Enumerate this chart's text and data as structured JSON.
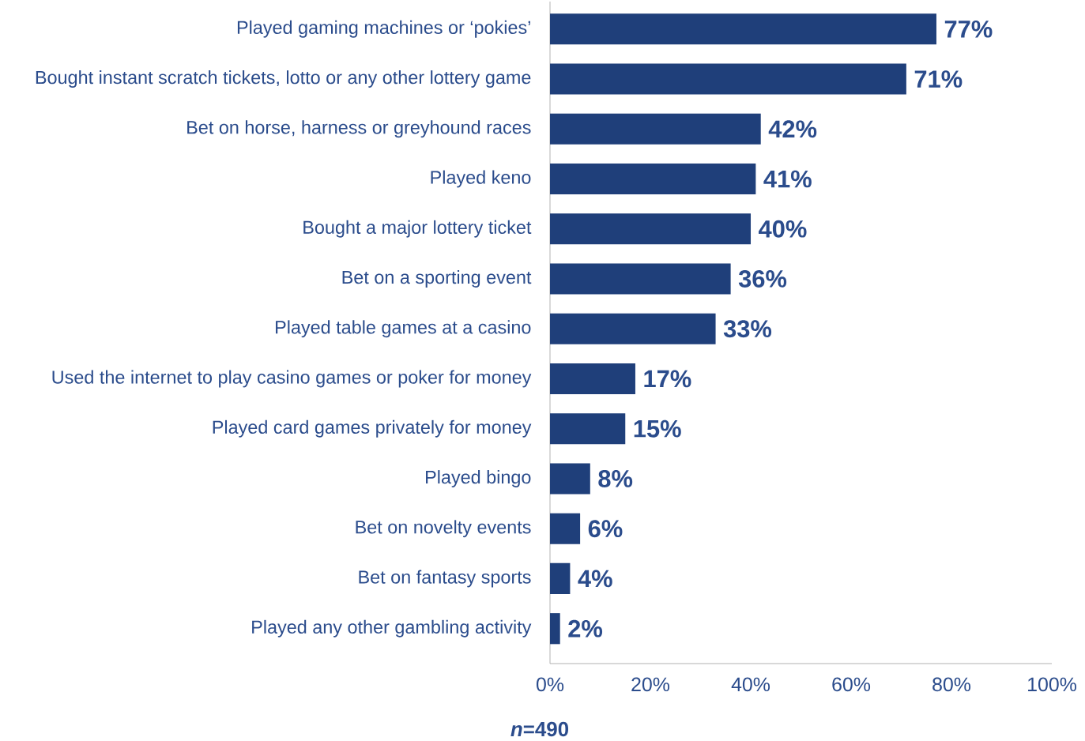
{
  "chart_data": {
    "type": "bar",
    "orientation": "horizontal",
    "color": "#1f3f7a",
    "categories": [
      "Played gaming machines or ‘pokies’",
      "Bought instant scratch tickets, lotto or any other lottery game",
      "Bet on horse, harness or greyhound races",
      "Played keno",
      "Bought a major lottery ticket",
      "Bet on a sporting event",
      "Played table games at a casino",
      "Used the internet to play casino games or poker for money",
      "Played card games privately for money",
      "Played bingo",
      "Bet on novelty events",
      "Bet on fantasy sports",
      "Played any other gambling activity"
    ],
    "values": [
      77,
      71,
      42,
      41,
      40,
      36,
      33,
      17,
      15,
      8,
      6,
      4,
      2
    ],
    "value_labels": [
      "77%",
      "71%",
      "42%",
      "41%",
      "40%",
      "36%",
      "33%",
      "17%",
      "15%",
      "8%",
      "6%",
      "4%",
      "2%"
    ],
    "xlim": [
      0,
      100
    ],
    "xticks": [
      {
        "value": 0,
        "label": "0%"
      },
      {
        "value": 20,
        "label": "20%"
      },
      {
        "value": 40,
        "label": "40%"
      },
      {
        "value": 60,
        "label": "60%"
      },
      {
        "value": 80,
        "label": "80%"
      },
      {
        "value": 100,
        "label": "100%"
      }
    ],
    "grid": false,
    "annotations": [
      "*n*=490"
    ]
  }
}
